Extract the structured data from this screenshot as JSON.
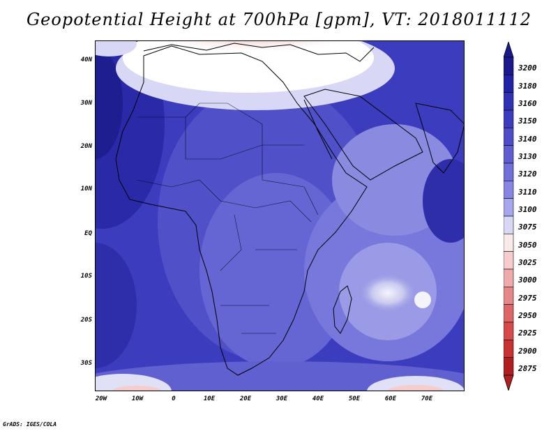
{
  "title": "Geopotential Height at 700hPa [gpm], VT: 2018011112",
  "footer": "GrADS: IGES/COLA",
  "map": {
    "lat_ticks": [
      "40N",
      "30N",
      "20N",
      "10N",
      "EQ",
      "10S",
      "20S",
      "30S"
    ],
    "lon_ticks": [
      "20W",
      "10W",
      "0",
      "10E",
      "20E",
      "30E",
      "40E",
      "50E",
      "60E",
      "70E"
    ]
  },
  "colorbar": {
    "levels": [
      "3200",
      "3180",
      "3160",
      "3150",
      "3140",
      "3130",
      "3120",
      "3110",
      "3100",
      "3075",
      "3050",
      "3025",
      "3000",
      "2975",
      "2950",
      "2925",
      "2900",
      "2875"
    ],
    "colors_top_to_bottom": [
      "#1a1a8c",
      "#2222a6",
      "#3030b4",
      "#3c3cbf",
      "#4d4dc9",
      "#5e5ed2",
      "#7070da",
      "#8686e2",
      "#a6a6ec",
      "#d8d8f6",
      "#fbeaea",
      "#f6cccc",
      "#efaaaa",
      "#e78888",
      "#df6666",
      "#d64a4a",
      "#c83232",
      "#b01e1e"
    ]
  }
}
